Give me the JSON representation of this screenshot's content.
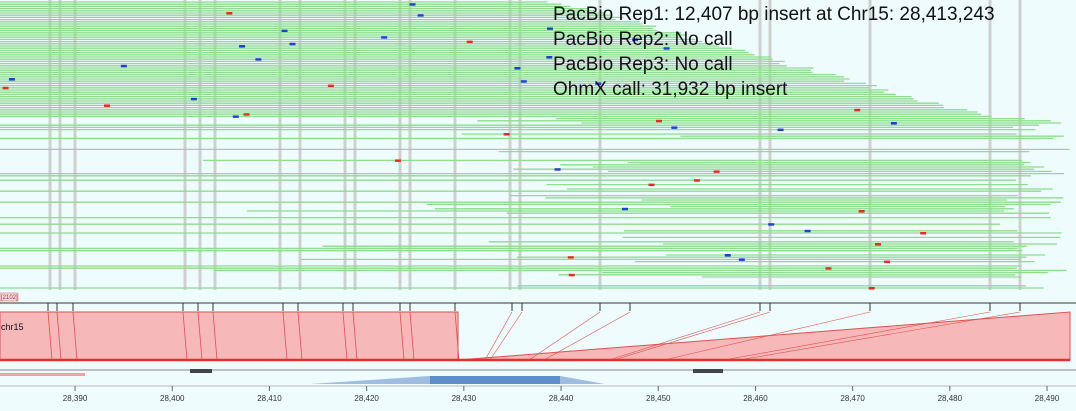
{
  "annotations": [
    "PacBio Rep1: 12,407 bp insert at Chr15: 28,413,243",
    "PacBio Rep2: No call",
    "PacBio Rep3: No call",
    "OhmX call: 31,932 bp insert"
  ],
  "track_label": "[2102]",
  "reference_label": "chr15",
  "axis": {
    "xlim": [
      28382.28,
      28492.98
    ],
    "ticks": [
      {
        "value": 28390,
        "label": "28,390"
      },
      {
        "value": 28400,
        "label": "28,400"
      },
      {
        "value": 28410,
        "label": "28,410"
      },
      {
        "value": 28420,
        "label": "28,420"
      },
      {
        "value": 28430,
        "label": "28,430"
      },
      {
        "value": 28440,
        "label": "28,440"
      },
      {
        "value": 28450,
        "label": "28,450"
      },
      {
        "value": 28460,
        "label": "28,460"
      },
      {
        "value": 28470,
        "label": "28,470"
      },
      {
        "value": 28480,
        "label": "28,480"
      },
      {
        "value": 28490,
        "label": "28,490"
      }
    ]
  }
}
